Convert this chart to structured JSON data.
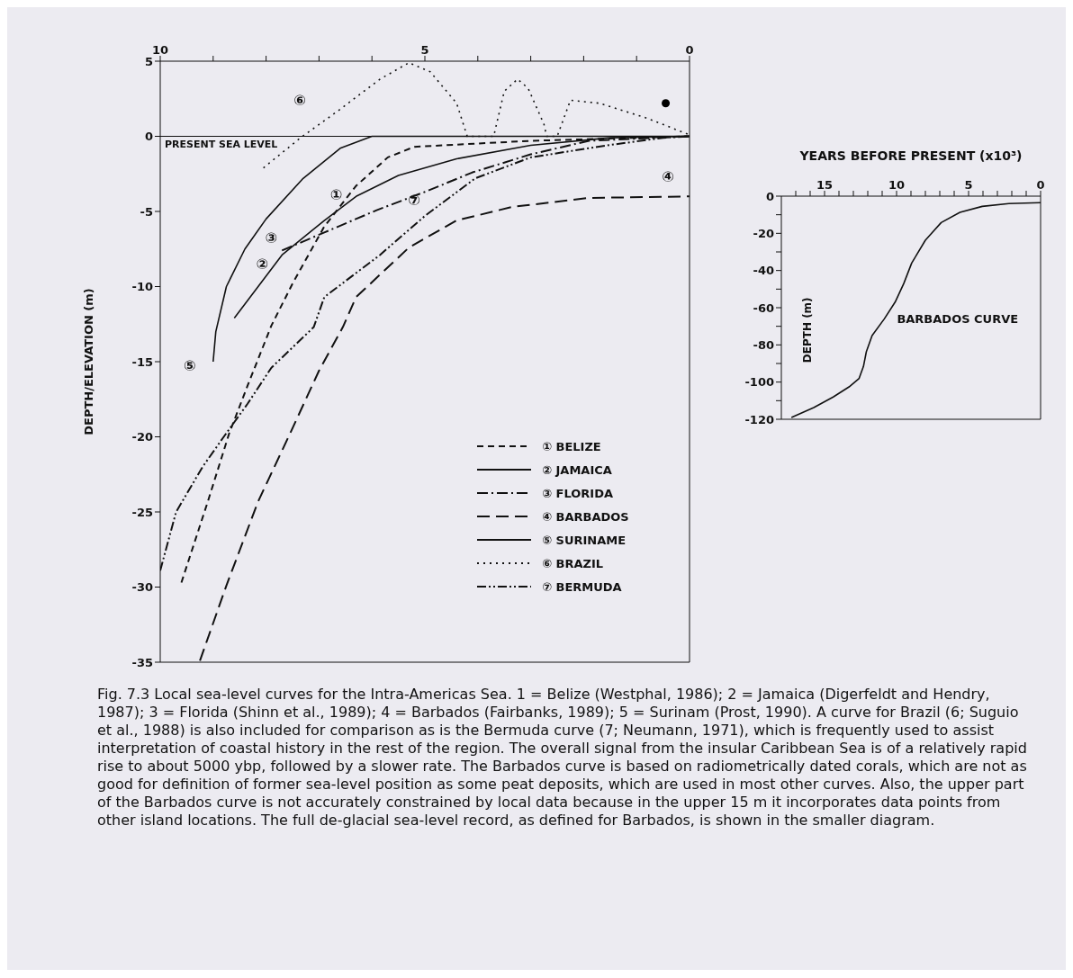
{
  "chart_data": [
    {
      "type": "line",
      "ylabel": "DEPTH/ELEVATION (m)",
      "xlim": [
        10,
        0
      ],
      "xticks": [
        10,
        {
          "value": 9,
          "label": null
        },
        {
          "value": 8,
          "label": null
        },
        {
          "value": 7,
          "label": null
        },
        {
          "value": 6,
          "label": null
        },
        5,
        {
          "value": 4,
          "label": null
        },
        {
          "value": 3,
          "label": null
        },
        {
          "value": 2,
          "label": null
        },
        {
          "value": 1,
          "label": null
        },
        0
      ],
      "ylim": [
        -35,
        5
      ],
      "yticks": [
        5,
        0,
        -5,
        -10,
        -15,
        -20,
        -25,
        -30,
        -35
      ],
      "grid": false,
      "legend": "bottom right",
      "marker": "none",
      "ref_lines": [
        {
          "axis": "y",
          "value": 0,
          "label": "PRESENT SEA LEVEL"
        }
      ],
      "series": [
        {
          "name": "① BELIZE",
          "color": "#111111",
          "line_style": "dashed",
          "x": [
            9.6,
            9.1,
            8.7,
            8.35,
            7.9,
            7.5,
            6.9,
            6.3,
            5.7,
            5.2,
            3,
            0
          ],
          "values": [
            -29.7,
            -24.3,
            -19.8,
            -16.6,
            -12.6,
            -9.8,
            -6,
            -3.3,
            -1.4,
            -0.7,
            -0.3,
            0
          ]
        },
        {
          "name": "② JAMAICA",
          "color": "#111111",
          "line_style": "solid",
          "x": [
            8.6,
            7.7,
            6.9,
            6.3,
            5.5,
            4.4,
            3,
            1.5,
            0
          ],
          "values": [
            -12.1,
            -7.9,
            -5.6,
            -4,
            -2.6,
            -1.5,
            -0.6,
            -0.1,
            0
          ]
        },
        {
          "name": "③ FLORIDA",
          "color": "#111111",
          "line_style": "dashdot",
          "x": [
            7.7,
            6.9,
            5.9,
            5,
            4.1,
            3,
            1.9,
            0
          ],
          "values": [
            -7.6,
            -6.4,
            -4.9,
            -3.7,
            -2.4,
            -1.2,
            -0.3,
            0
          ]
        },
        {
          "name": "④ BARBADOS",
          "color": "#111111",
          "line_style": "longdash",
          "x": [
            9.25,
            8.75,
            8.15,
            7.55,
            7,
            6.55,
            6.3,
            5.3,
            4.4,
            3.35,
            1.9,
            0
          ],
          "values": [
            -34.9,
            -29.9,
            -24.3,
            -19.8,
            -15.6,
            -12.7,
            -10.7,
            -7.4,
            -5.6,
            -4.7,
            -4.1,
            -4
          ]
        },
        {
          "name": "⑤ SURINAME",
          "color": "#111111",
          "line_style": "solid",
          "x": [
            9,
            8.95,
            8.75,
            8.4,
            8,
            7.3,
            6.6,
            6,
            0
          ],
          "values": [
            -15,
            -13,
            -10,
            -7.5,
            -5.5,
            -2.8,
            -0.8,
            0,
            0
          ]
        },
        {
          "name": "⑥ BRAZIL",
          "color": "#111111",
          "line_style": "dotted",
          "x": [
            8.05,
            7.35,
            6.6,
            5.85,
            5.3,
            4.9,
            4.4,
            4.2,
            3.7,
            3.5,
            3.25,
            3.05,
            2.75,
            2.7,
            2.5,
            2.25,
            1.7,
            0.8,
            0
          ],
          "values": [
            -2.1,
            -0.1,
            1.8,
            3.8,
            4.9,
            4.3,
            2.2,
            0,
            0,
            3,
            3.8,
            3.2,
            0.8,
            0,
            0,
            2.4,
            2.2,
            1.2,
            0.1
          ]
        },
        {
          "name": "⑦ BERMUDA",
          "color": "#111111",
          "line_style": "dashdotdot",
          "x": [
            10,
            9.7,
            9.2,
            8.8,
            8.35,
            7.9,
            7.1,
            6.9,
            5.85,
            5,
            4.05,
            3,
            1.55,
            0.5,
            0
          ],
          "values": [
            -28.9,
            -25,
            -22,
            -20,
            -17.8,
            -15.4,
            -12.7,
            -10.7,
            -7.9,
            -5.3,
            -2.8,
            -1.4,
            -0.6,
            -0.1,
            0
          ]
        },
        {
          "type": "scatter",
          "color": "#000000",
          "marker": "circle",
          "x": [
            0.45
          ],
          "values": [
            2.2
          ]
        }
      ],
      "annotations": [
        {
          "text": "⑥",
          "x": 6.6,
          "y": 1.8
        },
        {
          "text": "①",
          "x": 6.3,
          "y": -3.3
        },
        {
          "text": "②",
          "x": 7.7,
          "y": -7.9
        },
        {
          "text": "③",
          "x": 7.7,
          "y": -7.6
        },
        {
          "text": "④",
          "x": 0,
          "y": -4
        },
        {
          "text": "⑤",
          "x": 9,
          "y": -15
        },
        {
          "text": "⑦",
          "x": 5,
          "y": -5.3
        },
        "Fig. 7.3 Local sea-level curves for the Intra-Americas Sea. 1 = Belize (Westphal, 1986); 2 = Jamaica (Digerfeldt and Hendry, 1987); 3 = Florida (Shinn et al., 1989); 4 = Barbados (Fairbanks, 1989); 5 = Surinam (Prost, 1990). A curve for Brazil (6; Suguio et al., 1988) is also included for comparison as is the Bermuda curve (7; Neumann, 1971), which is frequently used to assist interpretation of coastal history in the rest of the region. The overall signal from the insular Caribbean Sea is of a relatively rapid rise to about 5000 ybp, followed by a slower rate. The Barbados curve is based on radiometrically dated corals, which are not as good for definition of former sea-level position as some peat deposits, which are used in most other curves. Also, the upper part of the Barbados curve is not accurately constrained by local data because in the upper 15 m it incorporates data points from other island locations. The full de-glacial sea-level record, as defined for Barbados, is shown in the smaller diagram."
      ]
    },
    {
      "type": "line",
      "xlabel": "YEARS BEFORE PRESENT (x10³)",
      "ylabel": "DEPTH (m)",
      "xlim": [
        18,
        0
      ],
      "xticks": [
        {
          "value": 17,
          "label": null
        },
        {
          "value": 16,
          "label": null
        },
        15,
        {
          "value": 14,
          "label": null
        },
        {
          "value": 13,
          "label": null
        },
        {
          "value": 12,
          "label": null
        },
        {
          "value": 11,
          "label": null
        },
        10,
        {
          "value": 9,
          "label": null
        },
        {
          "value": 8,
          "label": null
        },
        {
          "value": 7,
          "label": null
        },
        {
          "value": 6,
          "label": null
        },
        5,
        {
          "value": 4,
          "label": null
        },
        {
          "value": 3,
          "label": null
        },
        {
          "value": 2,
          "label": null
        },
        {
          "value": 1,
          "label": null
        },
        0
      ],
      "ylim": [
        -120,
        0
      ],
      "yticks": [
        0,
        {
          "value": -10,
          "label": null
        },
        -20,
        {
          "value": -30,
          "label": null
        },
        -40,
        {
          "value": -50,
          "label": null
        },
        -60,
        {
          "value": -70,
          "label": null
        },
        -80,
        {
          "value": -90,
          "label": null
        },
        -100,
        {
          "value": -110,
          "label": null
        },
        -120
      ],
      "grid": false,
      "marker": "none",
      "line_style": "solid",
      "series": [
        {
          "color": "#111111",
          "x": [
            17.3,
            15.75,
            14.4,
            13.3,
            12.6,
            12.3,
            12.1,
            11.7,
            10.85,
            10.1,
            9.5,
            8.95,
            8,
            6.9,
            5.6,
            4.05,
            2.2,
            0
          ],
          "values": [
            -119,
            -113.7,
            -108,
            -102.6,
            -98,
            -91.6,
            -83.7,
            -75,
            -66,
            -57,
            -47,
            -36,
            -23.7,
            -14.2,
            -8.7,
            -5.5,
            -4,
            -3.5
          ]
        }
      ],
      "annotations": [
        {
          "text": "BARBADOS CURVE",
          "x": 10.85,
          "y": -66
        }
      ]
    }
  ]
}
